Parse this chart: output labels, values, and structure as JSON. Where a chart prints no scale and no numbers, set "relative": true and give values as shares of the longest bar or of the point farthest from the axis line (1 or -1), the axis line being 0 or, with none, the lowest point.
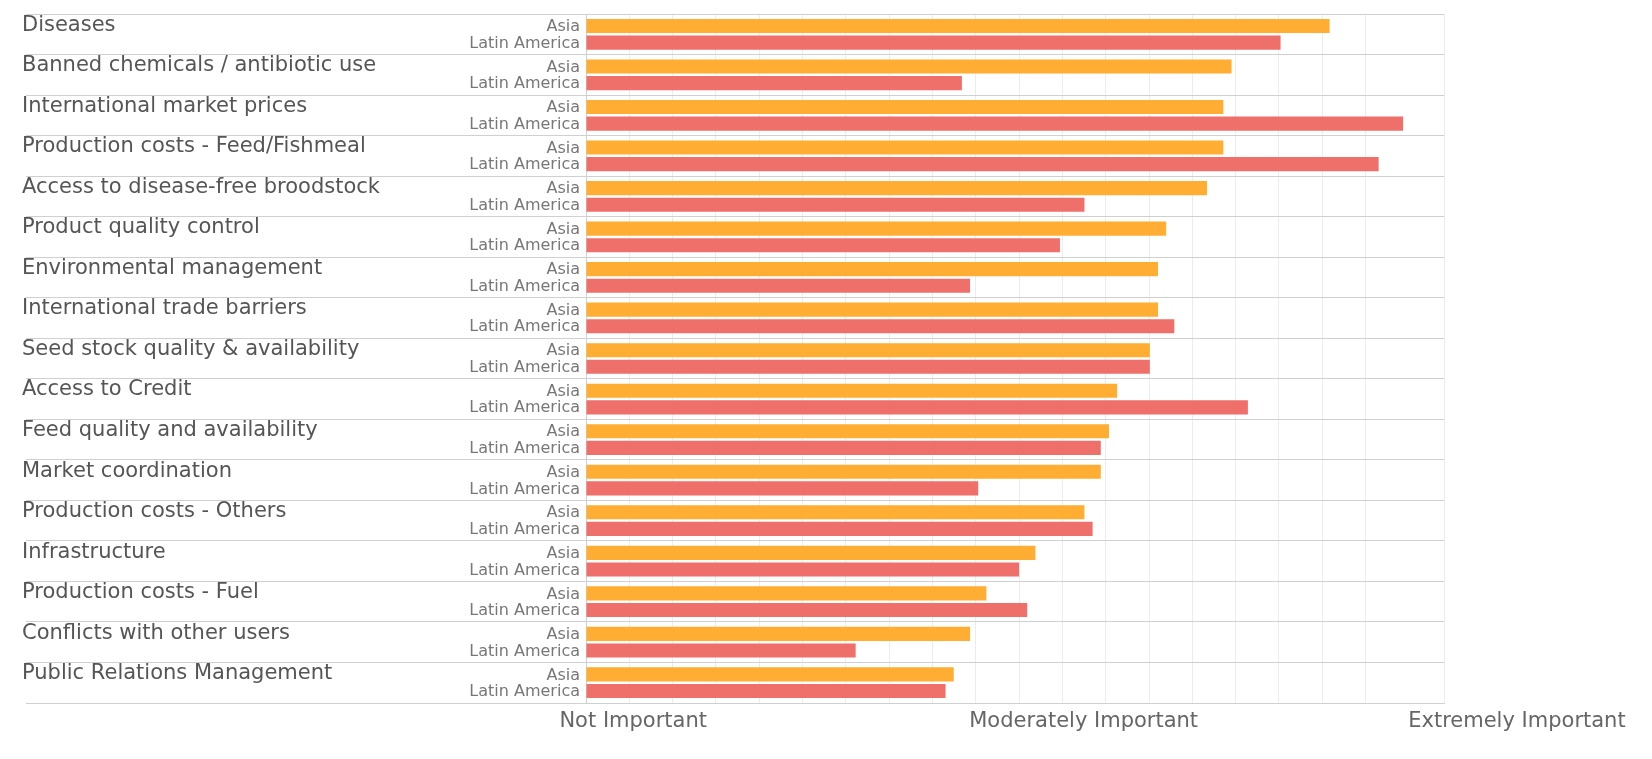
{
  "chart_data": {
    "type": "bar",
    "orientation": "horizontal",
    "grid": true,
    "relative": true,
    "categories": [
      "Diseases",
      "Banned chemicals / antibiotic use",
      "International market prices",
      "Production costs - Feed/Fishmeal",
      "Access to disease-free broodstock",
      "Product quality control",
      "Environmental management",
      "International trade barriers",
      "Seed stock quality & availability",
      "Access to Credit",
      "Feed quality and availability",
      "Market coordination",
      "Production costs - Others",
      "Infrastructure",
      "Production costs - Fuel",
      "Conflicts with other users",
      "Public Relations Management"
    ],
    "series": [
      {
        "name": "Asia",
        "color": "#ffad33",
        "values": [
          0.91,
          0.79,
          0.78,
          0.78,
          0.76,
          0.71,
          0.7,
          0.7,
          0.69,
          0.65,
          0.64,
          0.63,
          0.61,
          0.55,
          0.49,
          0.47,
          0.45
        ]
      },
      {
        "name": "Latin America",
        "color": "#ef6f6a",
        "values": [
          0.85,
          0.46,
          1,
          0.97,
          0.61,
          0.58,
          0.47,
          0.72,
          0.69,
          0.81,
          0.63,
          0.48,
          0.62,
          0.53,
          0.54,
          0.33,
          0.44
        ]
      }
    ],
    "annotations": [
      "Not Important",
      "Moderately Important",
      "Extremely Important"
    ]
  }
}
